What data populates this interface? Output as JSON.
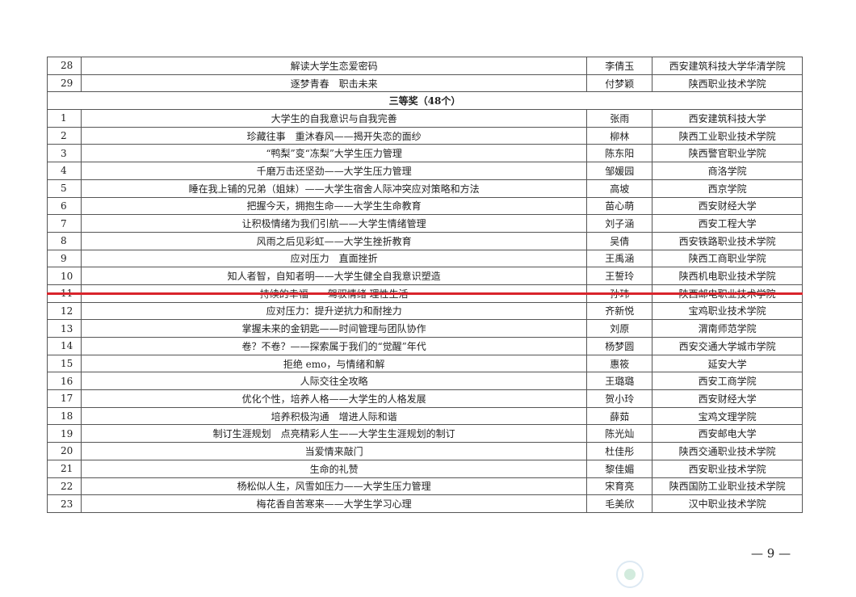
{
  "rows_before": [
    {
      "num": "28",
      "title": "解读大学生恋爱密码",
      "name": "李倩玉",
      "school": "西安建筑科技大学华清学院"
    },
    {
      "num": "29",
      "title": "逐梦青春　职击未来",
      "name": "付梦颖",
      "school": "陕西职业技术学院"
    }
  ],
  "section_title": "三等奖（48个）",
  "rows": [
    {
      "num": "1",
      "title": "大学生的自我意识与自我完善",
      "name": "张雨",
      "school": "西安建筑科技大学"
    },
    {
      "num": "2",
      "title": "珍藏往事　重沐春风——揭开失恋的面纱",
      "name": "柳林",
      "school": "陕西工业职业技术学院"
    },
    {
      "num": "3",
      "title": "“鸭梨”变“冻梨”大学生压力管理",
      "name": "陈东阳",
      "school": "陕西警官职业学院"
    },
    {
      "num": "4",
      "title": "千磨万击还坚劲——大学生压力管理",
      "name": "邹媛园",
      "school": "商洛学院"
    },
    {
      "num": "5",
      "title": "睡在我上铺的兄弟（姐妹）——大学生宿舍人际冲突应对策略和方法",
      "name": "高坡",
      "school": "西京学院"
    },
    {
      "num": "6",
      "title": "把握今天，拥抱生命——大学生生命教育",
      "name": "苗心萌",
      "school": "西安财经大学"
    },
    {
      "num": "7",
      "title": "让积极情绪为我们引航——大学生情绪管理",
      "name": "刘子涵",
      "school": "西安工程大学"
    },
    {
      "num": "8",
      "title": "风雨之后见彩虹——大学生挫折教育",
      "name": "吴倩",
      "school": "西安铁路职业技术学院"
    },
    {
      "num": "9",
      "title": "应对压力　直面挫折",
      "name": "王禹涵",
      "school": "陕西工商职业学院"
    },
    {
      "num": "10",
      "title": "知人者智，自知者明——大学生健全自我意识塑造",
      "name": "王誓玲",
      "school": "陕西机电职业技术学院"
    },
    {
      "num": "11",
      "title": "持续的幸福——驾驭情绪 理性生活",
      "name": "孙玮",
      "school": "陕西邮电职业技术学院"
    },
    {
      "num": "12",
      "title": "应对压力：提升逆抗力和耐挫力",
      "name": "齐新悦",
      "school": "宝鸡职业技术学院"
    },
    {
      "num": "13",
      "title": "掌握未来的金钥匙——时间管理与团队协作",
      "name": "刘原",
      "school": "渭南师范学院"
    },
    {
      "num": "14",
      "title": "卷？不卷？——探索属于我们的“觉醒”年代",
      "name": "杨梦圆",
      "school": "西安交通大学城市学院"
    },
    {
      "num": "15",
      "title": "拒绝 emo，与情绪和解",
      "name": "惠筱",
      "school": "延安大学"
    },
    {
      "num": "16",
      "title": "人际交往全攻略",
      "name": "王璐璐",
      "school": "西安工商学院"
    },
    {
      "num": "17",
      "title": "优化个性，培养人格——大学生的人格发展",
      "name": "贺小玲",
      "school": "西安财经大学"
    },
    {
      "num": "18",
      "title": "培养积极沟通　增进人际和谐",
      "name": "薛茹",
      "school": "宝鸡文理学院"
    },
    {
      "num": "19",
      "title": "制订生涯规划　点亮精彩人生——大学生生涯规划的制订",
      "name": "陈光灿",
      "school": "西安邮电大学"
    },
    {
      "num": "20",
      "title": "当爱情来敲门",
      "name": "杜佳彤",
      "school": "陕西交通职业技术学院"
    },
    {
      "num": "21",
      "title": "生命的礼赞",
      "name": "黎佳媚",
      "school": "西安职业技术学院"
    },
    {
      "num": "22",
      "title": "杨松似人生，风雪如压力——大学生压力管理",
      "name": "宋育亮",
      "school": "陕西国防工业职业技术学院"
    },
    {
      "num": "23",
      "title": "梅花香自苦寒来——大学生学习心理",
      "name": "毛美欣",
      "school": "汉中职业技术学院"
    }
  ],
  "page_number": "— 9 —",
  "colors": {
    "highlight_line": "#d9242c",
    "border": "#555555"
  }
}
